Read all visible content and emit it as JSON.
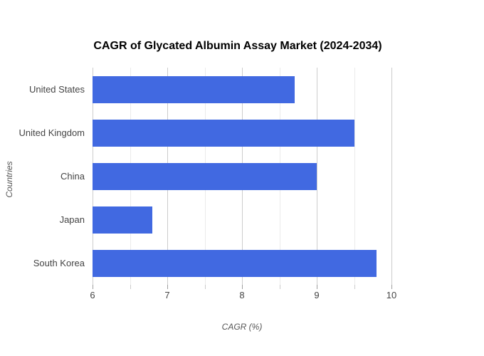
{
  "title": "CAGR of Glycated Albumin Assay Market (2024-2034)",
  "chart_data": {
    "type": "bar",
    "orientation": "horizontal",
    "title": "CAGR of Glycated Albumin Assay Market (2024-2034)",
    "categories": [
      "United States",
      "United Kingdom",
      "China",
      "Japan",
      "South Korea"
    ],
    "values": [
      8.7,
      9.5,
      9.0,
      6.8,
      9.8
    ],
    "xlabel": "CAGR (%)",
    "ylabel": "Countries",
    "xlim": [
      6,
      10
    ],
    "x_major_ticks": [
      6,
      7,
      8,
      9,
      10
    ],
    "x_minor_step": 0.5,
    "grid": true,
    "legend": "none",
    "colors": {
      "bar": "#4169e1",
      "major_grid": "#cccccc",
      "minor_grid": "#ebebeb",
      "major_tick": "#9e9e9e",
      "minor_tick": "#cccccc",
      "tick_label": "#444444",
      "axis_title": "#555555",
      "title": "#000000",
      "background": "#ffffff"
    }
  }
}
